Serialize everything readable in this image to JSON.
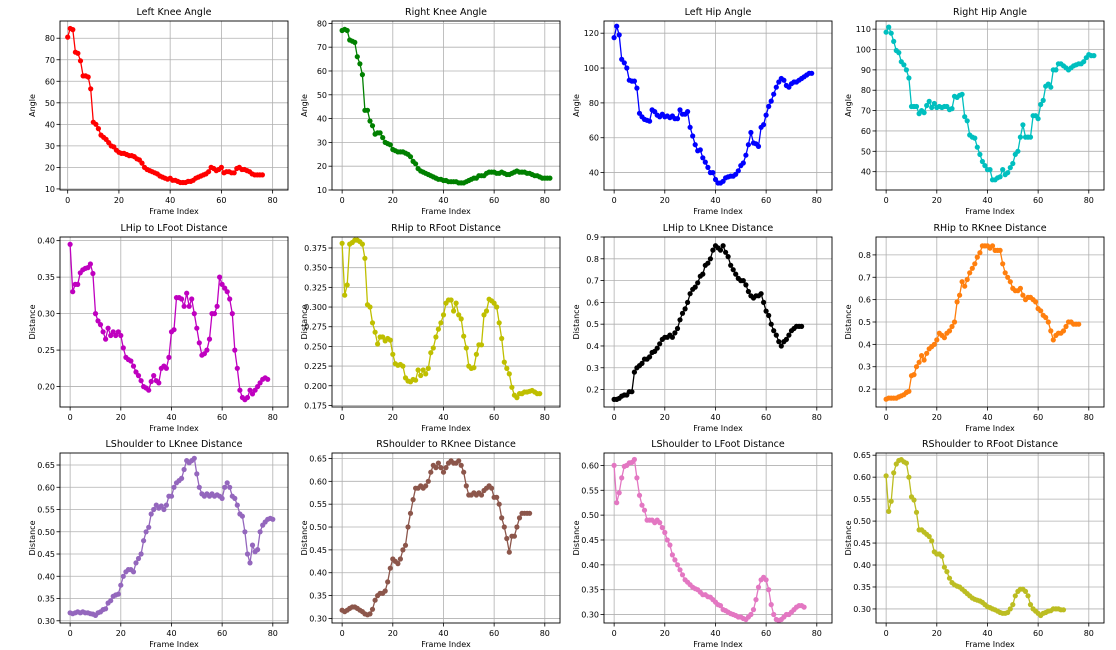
{
  "chart_data": [
    {
      "type": "line",
      "title": "Left Knee Angle",
      "xlabel": "Frame Index",
      "ylabel": "Angle",
      "color": "#ff0000",
      "xlim": [
        -3,
        86
      ],
      "ylim": [
        9.5,
        88
      ],
      "xticks": [
        0,
        20,
        40,
        60,
        80
      ],
      "yticks": [
        10,
        20,
        30,
        40,
        50,
        60,
        70,
        80
      ],
      "values": [
        80.5,
        84.5,
        84,
        73.5,
        73,
        69.5,
        62.5,
        62.5,
        62,
        56.5,
        41,
        40,
        38,
        35,
        34,
        33,
        31.5,
        30,
        29.5,
        28,
        27,
        26.5,
        26.5,
        26,
        25.5,
        25.5,
        25,
        24,
        23.5,
        22,
        20,
        19,
        18.5,
        18,
        17.5,
        17,
        16,
        15.5,
        15,
        14.5,
        15,
        14,
        14,
        13.5,
        13,
        13,
        13,
        13.5,
        13.5,
        14,
        15,
        15.5,
        16,
        16.5,
        17,
        18,
        20,
        19.5,
        18.5,
        19,
        20,
        17.5,
        18,
        18,
        17.5,
        17.5,
        19.5,
        20,
        19,
        19,
        18.5,
        18,
        17,
        16.5,
        16.5,
        16.5,
        16.5
      ]
    },
    {
      "type": "line",
      "title": "Right Knee Angle",
      "xlabel": "Frame Index",
      "ylabel": "Angle",
      "color": "#008000",
      "xlim": [
        -4,
        86
      ],
      "ylim": [
        10,
        81
      ],
      "xticks": [
        0,
        20,
        40,
        60,
        80
      ],
      "yticks": [
        10,
        20,
        30,
        40,
        50,
        60,
        70,
        80
      ],
      "values": [
        77,
        77.5,
        77,
        73,
        72.5,
        72,
        66,
        63,
        58.5,
        43.5,
        43.5,
        39,
        37,
        33.5,
        34,
        34,
        32,
        30,
        29.5,
        29,
        27,
        26.5,
        26,
        26,
        26,
        25.5,
        25,
        24,
        22,
        21,
        19,
        18,
        17.5,
        17,
        16.5,
        16,
        15.5,
        15,
        14.5,
        14.5,
        14,
        14,
        13.5,
        13.5,
        13.5,
        13.5,
        13,
        13,
        13,
        13.5,
        14,
        14.5,
        15,
        15,
        16,
        16,
        16,
        17,
        17.5,
        17.5,
        17.5,
        17,
        17,
        17.5,
        17,
        16.5,
        16.5,
        17,
        17.5,
        18,
        17.5,
        17.5,
        17.5,
        17,
        17,
        16.5,
        16,
        16,
        15.5,
        15,
        15,
        15,
        15
      ]
    },
    {
      "type": "line",
      "title": "Left Hip Angle",
      "xlabel": "Frame Index",
      "ylabel": "Angle",
      "color": "#0000ff",
      "xlim": [
        -4,
        86
      ],
      "ylim": [
        30,
        127
      ],
      "xticks": [
        0,
        20,
        40,
        60,
        80
      ],
      "yticks": [
        40,
        60,
        80,
        100,
        120
      ],
      "values": [
        117.5,
        124,
        119,
        105,
        103,
        100,
        93,
        92.5,
        92.5,
        88.5,
        74,
        72,
        70.5,
        70,
        69.5,
        76,
        75,
        73,
        72,
        73.5,
        72,
        72.5,
        71.5,
        72.5,
        71,
        71,
        76,
        73.5,
        73.5,
        75,
        66,
        61,
        56,
        52.5,
        53,
        48.5,
        46,
        43,
        40,
        40,
        36,
        34,
        34,
        35,
        37,
        37.5,
        38,
        38,
        39,
        41,
        44,
        45.5,
        50,
        56,
        63,
        57,
        56.5,
        55,
        66,
        67.5,
        73,
        78,
        81,
        85,
        89,
        92,
        94,
        93,
        90,
        89,
        91,
        92,
        92,
        93,
        94,
        95,
        96,
        97,
        97
      ]
    },
    {
      "type": "line",
      "title": "Right Hip Angle",
      "xlabel": "Frame Index",
      "ylabel": "Angle",
      "color": "#00bfbf",
      "xlim": [
        -4,
        86
      ],
      "ylim": [
        31,
        114
      ],
      "xticks": [
        0,
        20,
        40,
        60,
        80
      ],
      "yticks": [
        40,
        50,
        60,
        70,
        80,
        90,
        100,
        110
      ],
      "values": [
        108.5,
        111,
        108,
        104,
        99.5,
        98.5,
        94,
        92.5,
        90,
        86,
        72,
        72,
        72,
        68.5,
        70,
        69,
        72.5,
        74.5,
        71.5,
        73.5,
        71.5,
        72,
        71.5,
        72,
        72,
        70.5,
        71,
        77,
        76.5,
        77.5,
        78,
        67,
        65,
        58,
        57,
        56.5,
        52,
        48.5,
        45,
        43,
        41,
        41,
        36,
        36,
        37,
        37.5,
        41,
        38.5,
        39.5,
        42,
        44,
        48.5,
        50,
        57,
        63,
        57,
        57,
        57,
        67.5,
        67.5,
        66,
        73,
        75,
        82,
        83,
        81.5,
        90,
        90,
        93,
        93,
        92,
        91,
        90,
        91,
        92,
        92.5,
        93,
        93,
        94,
        96,
        97.5,
        97,
        97
      ]
    },
    {
      "type": "line",
      "title": "LHip to LFoot Distance",
      "xlabel": "Frame Index",
      "ylabel": "Distance",
      "color": "#bf00bf",
      "xlim": [
        -4,
        86
      ],
      "ylim": [
        0.172,
        0.405
      ],
      "xticks": [
        0,
        20,
        40,
        60,
        80
      ],
      "yticks": [
        0.2,
        0.25,
        0.3,
        0.35,
        0.4
      ],
      "yformat": 2,
      "values": [
        0.395,
        0.33,
        0.34,
        0.34,
        0.356,
        0.36,
        0.362,
        0.363,
        0.368,
        0.355,
        0.3,
        0.29,
        0.285,
        0.275,
        0.265,
        0.28,
        0.27,
        0.275,
        0.27,
        0.275,
        0.27,
        0.253,
        0.24,
        0.237,
        0.235,
        0.228,
        0.22,
        0.215,
        0.208,
        0.2,
        0.198,
        0.195,
        0.207,
        0.215,
        0.208,
        0.205,
        0.225,
        0.228,
        0.225,
        0.24,
        0.275,
        0.278,
        0.322,
        0.322,
        0.32,
        0.31,
        0.328,
        0.31,
        0.32,
        0.3,
        0.28,
        0.26,
        0.243,
        0.245,
        0.25,
        0.265,
        0.3,
        0.3,
        0.31,
        0.35,
        0.34,
        0.335,
        0.33,
        0.32,
        0.3,
        0.25,
        0.225,
        0.195,
        0.185,
        0.182,
        0.185,
        0.195,
        0.19,
        0.195,
        0.2,
        0.205,
        0.21,
        0.212,
        0.21
      ]
    },
    {
      "type": "line",
      "title": "RHip to RFoot Distance",
      "xlabel": "Frame Index",
      "ylabel": "Distance",
      "color": "#bfbf00",
      "xlim": [
        -4,
        86
      ],
      "ylim": [
        0.173,
        0.389
      ],
      "xticks": [
        0,
        20,
        40,
        60,
        80
      ],
      "yticks": [
        0.175,
        0.2,
        0.225,
        0.25,
        0.275,
        0.3,
        0.325,
        0.35,
        0.375
      ],
      "yformat": 3,
      "values": [
        0.381,
        0.315,
        0.328,
        0.38,
        0.382,
        0.385,
        0.385,
        0.383,
        0.38,
        0.362,
        0.303,
        0.3,
        0.28,
        0.268,
        0.253,
        0.262,
        0.262,
        0.257,
        0.26,
        0.258,
        0.24,
        0.228,
        0.226,
        0.227,
        0.225,
        0.21,
        0.206,
        0.205,
        0.208,
        0.207,
        0.22,
        0.213,
        0.22,
        0.215,
        0.222,
        0.242,
        0.248,
        0.262,
        0.272,
        0.28,
        0.29,
        0.305,
        0.309,
        0.309,
        0.295,
        0.305,
        0.29,
        0.285,
        0.263,
        0.248,
        0.225,
        0.222,
        0.223,
        0.24,
        0.252,
        0.252,
        0.29,
        0.295,
        0.31,
        0.308,
        0.305,
        0.3,
        0.28,
        0.26,
        0.23,
        0.222,
        0.215,
        0.198,
        0.188,
        0.185,
        0.19,
        0.19,
        0.192,
        0.192,
        0.193,
        0.194,
        0.192,
        0.19,
        0.19
      ]
    },
    {
      "type": "line",
      "title": "LHip to LKnee Distance",
      "xlabel": "Frame Index",
      "ylabel": "Distance",
      "color": "#000000",
      "xlim": [
        -4,
        86
      ],
      "ylim": [
        0.12,
        0.9
      ],
      "xticks": [
        0,
        20,
        40,
        60,
        80
      ],
      "yticks": [
        0.2,
        0.3,
        0.4,
        0.5,
        0.6,
        0.7,
        0.8,
        0.9
      ],
      "yformat": 1,
      "values": [
        0.155,
        0.155,
        0.16,
        0.17,
        0.175,
        0.175,
        0.19,
        0.19,
        0.28,
        0.3,
        0.31,
        0.32,
        0.34,
        0.34,
        0.35,
        0.37,
        0.375,
        0.39,
        0.41,
        0.43,
        0.44,
        0.44,
        0.45,
        0.44,
        0.46,
        0.48,
        0.52,
        0.55,
        0.57,
        0.6,
        0.64,
        0.66,
        0.67,
        0.69,
        0.72,
        0.73,
        0.77,
        0.78,
        0.8,
        0.84,
        0.86,
        0.85,
        0.84,
        0.86,
        0.83,
        0.81,
        0.77,
        0.75,
        0.73,
        0.71,
        0.7,
        0.7,
        0.68,
        0.65,
        0.63,
        0.62,
        0.63,
        0.63,
        0.64,
        0.6,
        0.56,
        0.54,
        0.5,
        0.47,
        0.45,
        0.42,
        0.4,
        0.42,
        0.43,
        0.45,
        0.47,
        0.48,
        0.49,
        0.49,
        0.49
      ]
    },
    {
      "type": "line",
      "title": "RHip to RKnee Distance",
      "xlabel": "Frame Index",
      "ylabel": "Distance",
      "color": "#ff7f0e",
      "xlim": [
        -4,
        86
      ],
      "ylim": [
        0.12,
        0.88
      ],
      "xticks": [
        0,
        20,
        40,
        60,
        80
      ],
      "yticks": [
        0.2,
        0.3,
        0.4,
        0.5,
        0.6,
        0.7,
        0.8
      ],
      "yformat": 1,
      "values": [
        0.155,
        0.16,
        0.16,
        0.16,
        0.16,
        0.165,
        0.17,
        0.175,
        0.185,
        0.19,
        0.26,
        0.265,
        0.3,
        0.32,
        0.35,
        0.33,
        0.36,
        0.38,
        0.39,
        0.4,
        0.42,
        0.45,
        0.44,
        0.43,
        0.45,
        0.46,
        0.48,
        0.5,
        0.59,
        0.62,
        0.68,
        0.66,
        0.69,
        0.72,
        0.74,
        0.76,
        0.79,
        0.81,
        0.84,
        0.84,
        0.84,
        0.83,
        0.84,
        0.82,
        0.82,
        0.82,
        0.76,
        0.72,
        0.7,
        0.68,
        0.65,
        0.64,
        0.64,
        0.65,
        0.62,
        0.6,
        0.61,
        0.61,
        0.6,
        0.59,
        0.56,
        0.55,
        0.53,
        0.52,
        0.5,
        0.46,
        0.42,
        0.44,
        0.45,
        0.45,
        0.46,
        0.48,
        0.5,
        0.5,
        0.49,
        0.49,
        0.49
      ]
    },
    {
      "type": "line",
      "title": "LShoulder to LKnee Distance",
      "xlabel": "Frame Index",
      "ylabel": "Distance",
      "color": "#9467bd",
      "xlim": [
        -4,
        86
      ],
      "ylim": [
        0.295,
        0.677
      ],
      "xticks": [
        0,
        20,
        40,
        60,
        80
      ],
      "yticks": [
        0.3,
        0.35,
        0.4,
        0.45,
        0.5,
        0.55,
        0.6,
        0.65
      ],
      "yformat": 2,
      "values": [
        0.318,
        0.316,
        0.318,
        0.32,
        0.318,
        0.32,
        0.318,
        0.318,
        0.316,
        0.315,
        0.312,
        0.318,
        0.32,
        0.325,
        0.327,
        0.34,
        0.345,
        0.355,
        0.358,
        0.36,
        0.38,
        0.4,
        0.41,
        0.415,
        0.415,
        0.41,
        0.43,
        0.44,
        0.45,
        0.48,
        0.5,
        0.51,
        0.54,
        0.55,
        0.56,
        0.553,
        0.558,
        0.55,
        0.56,
        0.58,
        0.58,
        0.6,
        0.61,
        0.615,
        0.62,
        0.64,
        0.66,
        0.655,
        0.66,
        0.665,
        0.63,
        0.6,
        0.585,
        0.58,
        0.585,
        0.58,
        0.585,
        0.58,
        0.583,
        0.58,
        0.575,
        0.6,
        0.61,
        0.6,
        0.58,
        0.575,
        0.56,
        0.54,
        0.535,
        0.5,
        0.45,
        0.43,
        0.47,
        0.455,
        0.46,
        0.5,
        0.515,
        0.522,
        0.528,
        0.53,
        0.528
      ]
    },
    {
      "type": "line",
      "title": "RShoulder to RKnee Distance",
      "xlabel": "Frame Index",
      "ylabel": "Distance",
      "color": "#8c564b",
      "xlim": [
        -4,
        86
      ],
      "ylim": [
        0.29,
        0.662
      ],
      "xticks": [
        0,
        20,
        40,
        60,
        80
      ],
      "yticks": [
        0.3,
        0.35,
        0.4,
        0.45,
        0.5,
        0.55,
        0.6,
        0.65
      ],
      "yformat": 2,
      "values": [
        0.318,
        0.315,
        0.318,
        0.322,
        0.325,
        0.325,
        0.322,
        0.318,
        0.315,
        0.31,
        0.308,
        0.31,
        0.32,
        0.34,
        0.35,
        0.355,
        0.355,
        0.36,
        0.38,
        0.41,
        0.43,
        0.425,
        0.42,
        0.43,
        0.45,
        0.46,
        0.5,
        0.53,
        0.56,
        0.585,
        0.585,
        0.59,
        0.585,
        0.59,
        0.6,
        0.62,
        0.635,
        0.63,
        0.64,
        0.63,
        0.62,
        0.63,
        0.64,
        0.645,
        0.64,
        0.64,
        0.645,
        0.635,
        0.62,
        0.59,
        0.57,
        0.57,
        0.575,
        0.57,
        0.575,
        0.57,
        0.58,
        0.585,
        0.59,
        0.585,
        0.565,
        0.565,
        0.55,
        0.52,
        0.5,
        0.475,
        0.445,
        0.48,
        0.48,
        0.5,
        0.52,
        0.53,
        0.53,
        0.53,
        0.53
      ]
    },
    {
      "type": "line",
      "title": "LShoulder to LFoot Distance",
      "xlabel": "Frame Index",
      "ylabel": "Distance",
      "color": "#e377c2",
      "xlim": [
        -4,
        86
      ],
      "ylim": [
        0.283,
        0.625
      ],
      "xticks": [
        0,
        20,
        40,
        60,
        80
      ],
      "yticks": [
        0.3,
        0.35,
        0.4,
        0.45,
        0.5,
        0.55,
        0.6
      ],
      "yformat": 2,
      "values": [
        0.6,
        0.525,
        0.545,
        0.575,
        0.598,
        0.6,
        0.605,
        0.606,
        0.612,
        0.575,
        0.54,
        0.52,
        0.51,
        0.49,
        0.49,
        0.49,
        0.485,
        0.49,
        0.485,
        0.475,
        0.465,
        0.45,
        0.44,
        0.42,
        0.41,
        0.4,
        0.39,
        0.38,
        0.37,
        0.365,
        0.36,
        0.355,
        0.352,
        0.35,
        0.345,
        0.34,
        0.34,
        0.336,
        0.335,
        0.33,
        0.325,
        0.32,
        0.318,
        0.31,
        0.308,
        0.305,
        0.302,
        0.3,
        0.298,
        0.295,
        0.295,
        0.292,
        0.29,
        0.295,
        0.3,
        0.31,
        0.33,
        0.355,
        0.37,
        0.375,
        0.37,
        0.35,
        0.32,
        0.3,
        0.29,
        0.288,
        0.29,
        0.295,
        0.3,
        0.3,
        0.305,
        0.31,
        0.315,
        0.318,
        0.318,
        0.315
      ]
    },
    {
      "type": "line",
      "title": "RShoulder to RFoot Distance",
      "xlabel": "Frame Index",
      "ylabel": "Distance",
      "color": "#bcbd22",
      "xlim": [
        -4,
        86
      ],
      "ylim": [
        0.268,
        0.655
      ],
      "xticks": [
        0,
        20,
        40,
        60,
        80
      ],
      "yticks": [
        0.3,
        0.35,
        0.4,
        0.45,
        0.5,
        0.55,
        0.6,
        0.65
      ],
      "yformat": 2,
      "values": [
        0.603,
        0.522,
        0.545,
        0.61,
        0.63,
        0.638,
        0.64,
        0.635,
        0.632,
        0.6,
        0.555,
        0.548,
        0.52,
        0.48,
        0.48,
        0.475,
        0.47,
        0.465,
        0.455,
        0.43,
        0.425,
        0.425,
        0.42,
        0.395,
        0.385,
        0.37,
        0.36,
        0.355,
        0.352,
        0.35,
        0.345,
        0.34,
        0.335,
        0.33,
        0.325,
        0.322,
        0.32,
        0.318,
        0.315,
        0.31,
        0.305,
        0.303,
        0.3,
        0.298,
        0.295,
        0.292,
        0.29,
        0.29,
        0.292,
        0.3,
        0.31,
        0.33,
        0.34,
        0.345,
        0.345,
        0.34,
        0.33,
        0.31,
        0.3,
        0.295,
        0.29,
        0.285,
        0.29,
        0.292,
        0.295,
        0.296,
        0.3,
        0.3,
        0.3,
        0.298,
        0.298
      ]
    }
  ]
}
